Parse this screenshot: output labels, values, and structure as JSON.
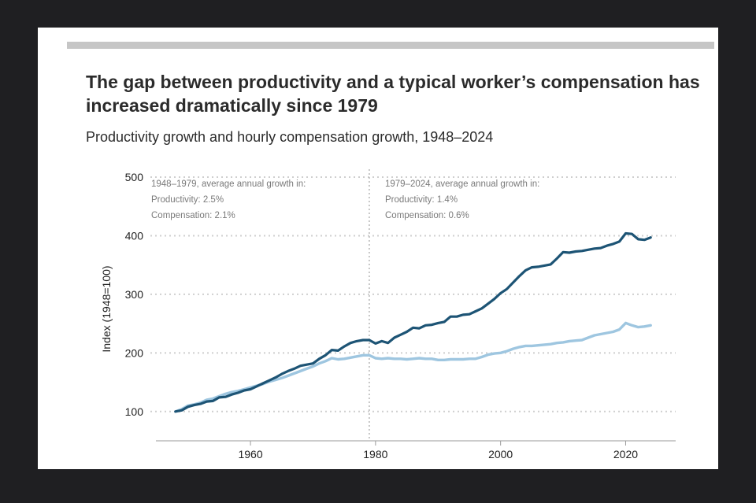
{
  "figure": {
    "title": "The gap between productivity and a typical worker’s compensation has increased dramatically since 1979",
    "subtitle": "Productivity growth and hourly compensation growth, 1948–2024",
    "colors": {
      "productivity": "#1d5475",
      "compensation": "#9ec6e0",
      "grid": "#cfcfcf",
      "top_bar": "#c6c6c6",
      "background": "#ffffff"
    }
  },
  "chart_data": {
    "type": "line",
    "ylabel": "Index (1948=100)",
    "xlabel": "",
    "xlim": [
      1944,
      2028
    ],
    "ylim": [
      50,
      500
    ],
    "x_ticks": [
      1960,
      1980,
      2000,
      2020
    ],
    "y_ticks": [
      100,
      200,
      300,
      400,
      500
    ],
    "grid": "horizontal dotted",
    "divider_year": 1979,
    "annotations": [
      {
        "lines": [
          "1948–1979, average annual growth in:",
          "Productivity: 2.5%",
          "Compensation: 2.1%"
        ]
      },
      {
        "lines": [
          "1979–2024, average annual growth in:",
          "Productivity: 1.4%",
          "Compensation: 0.6%"
        ]
      }
    ],
    "series": [
      {
        "id": "productivity",
        "x": [
          1948,
          1949,
          1950,
          1951,
          1952,
          1953,
          1954,
          1955,
          1956,
          1957,
          1958,
          1959,
          1960,
          1961,
          1962,
          1963,
          1964,
          1965,
          1966,
          1967,
          1968,
          1969,
          1970,
          1971,
          1972,
          1973,
          1974,
          1975,
          1976,
          1977,
          1978,
          1979,
          1980,
          1981,
          1982,
          1983,
          1984,
          1985,
          1986,
          1987,
          1988,
          1989,
          1990,
          1991,
          1992,
          1993,
          1994,
          1995,
          1996,
          1997,
          1998,
          1999,
          2000,
          2001,
          2002,
          2003,
          2004,
          2005,
          2006,
          2007,
          2008,
          2009,
          2010,
          2011,
          2012,
          2013,
          2014,
          2015,
          2016,
          2017,
          2018,
          2019,
          2020,
          2021,
          2022,
          2023,
          2024
        ],
        "values": [
          100,
          102,
          108,
          111,
          113,
          117,
          118,
          124,
          125,
          129,
          132,
          136,
          138,
          143,
          148,
          153,
          158,
          164,
          169,
          173,
          178,
          180,
          182,
          190,
          196,
          205,
          204,
          211,
          217,
          220,
          222,
          222,
          216,
          220,
          217,
          226,
          231,
          236,
          243,
          242,
          247,
          248,
          251,
          253,
          262,
          262,
          265,
          266,
          271,
          276,
          284,
          292,
          302,
          309,
          320,
          331,
          341,
          346,
          347,
          349,
          351,
          361,
          372,
          371,
          373,
          374,
          376,
          378,
          379,
          383,
          386,
          390,
          404,
          403,
          394,
          393,
          397
        ]
      },
      {
        "id": "compensation",
        "x": [
          1948,
          1949,
          1950,
          1951,
          1952,
          1953,
          1954,
          1955,
          1956,
          1957,
          1958,
          1959,
          1960,
          1961,
          1962,
          1963,
          1964,
          1965,
          1966,
          1967,
          1968,
          1969,
          1970,
          1971,
          1972,
          1973,
          1974,
          1975,
          1976,
          1977,
          1978,
          1979,
          1980,
          1981,
          1982,
          1983,
          1984,
          1985,
          1986,
          1987,
          1988,
          1989,
          1990,
          1991,
          1992,
          1993,
          1994,
          1995,
          1996,
          1997,
          1998,
          1999,
          2000,
          2001,
          2002,
          2003,
          2004,
          2005,
          2006,
          2007,
          2008,
          2009,
          2010,
          2011,
          2012,
          2013,
          2014,
          2015,
          2016,
          2017,
          2018,
          2019,
          2020,
          2021,
          2022,
          2023,
          2024
        ],
        "values": [
          100,
          104,
          110,
          112,
          115,
          120,
          122,
          126,
          130,
          133,
          135,
          138,
          141,
          144,
          147,
          151,
          154,
          157,
          161,
          165,
          169,
          173,
          177,
          182,
          186,
          191,
          189,
          190,
          192,
          194,
          196,
          196,
          191,
          190,
          191,
          190,
          190,
          189,
          190,
          191,
          190,
          190,
          188,
          188,
          189,
          189,
          189,
          190,
          190,
          193,
          197,
          199,
          200,
          203,
          207,
          210,
          212,
          212,
          213,
          214,
          215,
          217,
          218,
          220,
          221,
          222,
          226,
          230,
          232,
          234,
          236,
          240,
          251,
          247,
          244,
          245,
          247
        ]
      }
    ]
  }
}
